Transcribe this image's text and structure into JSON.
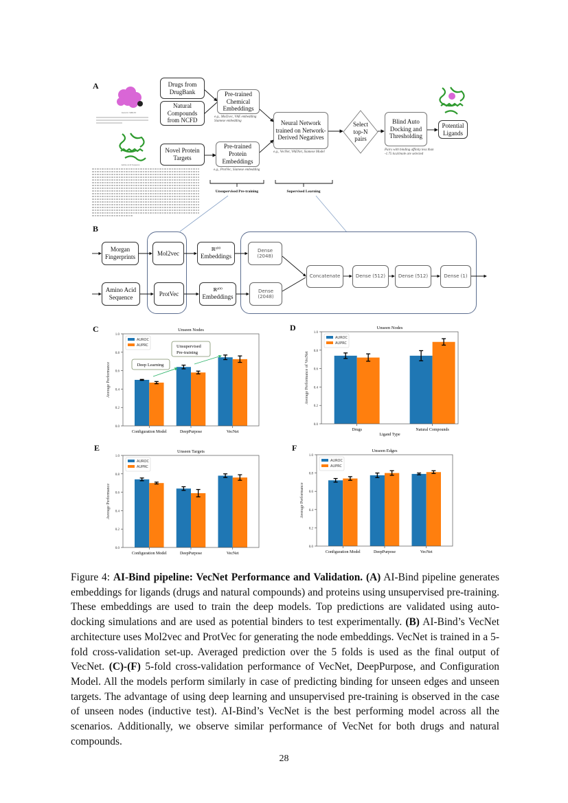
{
  "panel_a": {
    "letter": "A",
    "drugs_box": "Drugs from DrugBank",
    "natural_box": "Natural Compounds from NCFD",
    "protein_box": "Novel Protein Targets",
    "chem_embed_box": "Pre-trained Chemical Embeddings",
    "chem_embed_note": "e.g., Mol2vec, VAE embedding Siamese embedding",
    "prot_embed_box": "Pre-trained Protein Embeddings",
    "prot_embed_note": "e.g., ProtVec, Siamese embedding",
    "nn_box": "Neural Network trained on Network-Derived Negatives",
    "nn_note": "e.g., VecNet, VAENet, Siamese Model",
    "select_diamond": "Select top-N pairs",
    "docking_box": "Blind Auto Docking and Thresholding",
    "docking_note": "Pairs with binding affinity less than -1.75 kcal/mole are selected",
    "ligands_box": "Potential Ligands",
    "smiles_label": "Isomeric SMILES",
    "sequence_label": "Amino Acid Sequence",
    "bracket_unsupervised": "Unsupervised Pre-training",
    "bracket_supervised": "Supervised Learning",
    "colors": {
      "molecule": "#d966d6",
      "protein": "#2e9a2e"
    }
  },
  "panel_b": {
    "letter": "B",
    "morgan": "Morgan Fingerprints",
    "mol2vec": "Mol2vec",
    "emb_top": "Embeddings",
    "emb_bottom": "Embeddings",
    "r300": "ℝ³⁰⁰",
    "dense_top": "Dense (2048)",
    "amino": "Amino Acid Sequence",
    "protvec": "ProtVec",
    "dense_bottom": "Dense (2048)",
    "concatenate": "Concatenate",
    "dense512a": "Dense (512)",
    "dense512b": "Dense (512)",
    "dense1": "Dense (1)"
  },
  "chart_data": [
    {
      "letter": "C",
      "type": "bar",
      "title": "Unseen Nodes",
      "categories": [
        "Configuration Model",
        "DeepPurpose",
        "VecNet"
      ],
      "xlabel": "",
      "ylabel": "Average Performance",
      "ylim": [
        0,
        1.0
      ],
      "yticks": [
        "0.0",
        "0.2",
        "0.4",
        "0.6",
        "0.8",
        "1.0"
      ],
      "legend": "top-left",
      "series": [
        {
          "name": "AUROC",
          "color": "#1f77b4",
          "values": [
            0.5,
            0.64,
            0.745
          ],
          "errors": [
            0.005,
            0.02,
            0.025
          ]
        },
        {
          "name": "AUPRC",
          "color": "#ff7f0e",
          "values": [
            0.47,
            0.58,
            0.725
          ],
          "errors": [
            0.012,
            0.015,
            0.035
          ]
        }
      ],
      "annotations": [
        "Deep Learning",
        "Unsupervised Pre-training"
      ]
    },
    {
      "letter": "D",
      "type": "bar",
      "title": "Unseen Nodes",
      "categories": [
        "Drugs",
        "Natural Compounds"
      ],
      "xlabel": "Ligand Type",
      "ylabel": "Average Performance of VecNet",
      "ylim": [
        0,
        1.0
      ],
      "yticks": [
        "0.0",
        "0.2",
        "0.4",
        "0.6",
        "0.8",
        "1.0"
      ],
      "legend": "top-left",
      "series": [
        {
          "name": "AUROC",
          "color": "#1f77b4",
          "values": [
            0.74,
            0.74
          ],
          "errors": [
            0.03,
            0.055
          ]
        },
        {
          "name": "AUPRC",
          "color": "#ff7f0e",
          "values": [
            0.72,
            0.89
          ],
          "errors": [
            0.04,
            0.035
          ]
        }
      ]
    },
    {
      "letter": "E",
      "type": "bar",
      "title": "Unseen Targets",
      "categories": [
        "Configuration Model",
        "DeepPurpose",
        "VecNet"
      ],
      "xlabel": "",
      "ylabel": "Average Performance",
      "ylim": [
        0,
        1.0
      ],
      "yticks": [
        "0.0",
        "0.2",
        "0.4",
        "0.6",
        "0.8",
        "1.0"
      ],
      "legend": "top-left",
      "series": [
        {
          "name": "AUROC",
          "color": "#1f77b4",
          "values": [
            0.74,
            0.64,
            0.78
          ],
          "errors": [
            0.015,
            0.02,
            0.02
          ]
        },
        {
          "name": "AUPRC",
          "color": "#ff7f0e",
          "values": [
            0.7,
            0.59,
            0.76
          ],
          "errors": [
            0.01,
            0.04,
            0.03
          ]
        }
      ]
    },
    {
      "letter": "F",
      "type": "bar",
      "title": "Unseen Edges",
      "categories": [
        "Configuration Model",
        "DeepPurpose",
        "VecNet"
      ],
      "xlabel": "",
      "ylabel": "Average Performance",
      "ylim": [
        0,
        1.0
      ],
      "yticks": [
        "0.0",
        "0.2",
        "0.4",
        "0.6",
        "0.8",
        "1.0"
      ],
      "legend": "top-left",
      "series": [
        {
          "name": "AUROC",
          "color": "#1f77b4",
          "values": [
            0.72,
            0.775,
            0.79
          ],
          "errors": [
            0.02,
            0.025,
            0.01
          ]
        },
        {
          "name": "AUPRC",
          "color": "#ff7f0e",
          "values": [
            0.74,
            0.8,
            0.81
          ],
          "errors": [
            0.02,
            0.025,
            0.015
          ]
        }
      ]
    }
  ],
  "caption": {
    "segments": [
      {
        "text": "Figure 4: "
      },
      {
        "text": "AI-Bind pipeline: VecNet Performance and Validation. (A)"
      },
      {
        "text": " AI-Bind pipeline generates embeddings for ligands (drugs and natural compounds) and proteins using unsupervised pre-training. These embeddings are used to train the deep models. Top predictions are validated using auto-docking simulations and are used as potential binders to test experimentally. "
      },
      {
        "text": "(B)"
      },
      {
        "text": " AI-Bind’s VecNet architecture uses Mol2vec and ProtVec for generating the node embeddings. VecNet is trained in a 5-fold cross-validation set-up. Averaged prediction over the 5 folds is used as the final output of VecNet. "
      },
      {
        "text": "(C)-(F)"
      },
      {
        "text": " 5-fold cross-validation performance of VecNet, DeepPurpose, and Configuration Model. All the models perform similarly in case of predicting binding for unseen edges and unseen targets. The advantage of using deep learning and unsupervised pre-training is observed in the case of unseen nodes (inductive test). AI-Bind’s VecNet is the best performing model across all the scenarios. Additionally, we observe similar performance of VecNet for both drugs and natural compounds."
      }
    ]
  },
  "page_number": "28"
}
